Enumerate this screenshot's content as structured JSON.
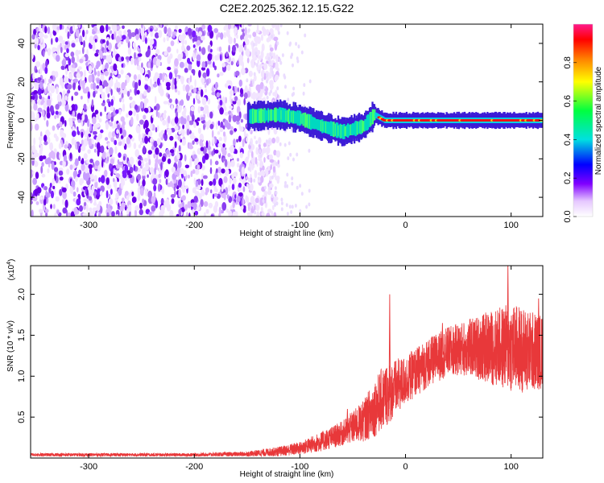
{
  "chart_data": [
    {
      "type": "heatmap",
      "title": "C2E2.2025.362.12.15.G22",
      "xlabel": "Height of straight line (km)",
      "ylabel": "Frequency (Hz)",
      "xlim": [
        -355,
        130
      ],
      "ylim": [
        -50,
        50
      ],
      "x_ticks": [
        -300,
        -200,
        -100,
        0,
        100
      ],
      "y_ticks": [
        -40,
        -20,
        0,
        20,
        40
      ],
      "colorbar": {
        "label": "Normalized spectral amplitude",
        "range": [
          0.0,
          1.0
        ],
        "ticks": [
          0.0,
          0.2,
          0.4,
          0.6,
          0.8
        ],
        "tick_labels": [
          "0.0",
          "0.2",
          "0.4",
          "0.6",
          "0.8"
        ]
      },
      "features": {
        "noise_region_x": [
          -355,
          -140
        ],
        "signal_trace": [
          {
            "x": -150,
            "f": 2
          },
          {
            "x": -120,
            "f": 3
          },
          {
            "x": -100,
            "f": 1
          },
          {
            "x": -80,
            "f": -3
          },
          {
            "x": -60,
            "f": -6
          },
          {
            "x": -40,
            "f": -3
          },
          {
            "x": -30,
            "f": 3
          },
          {
            "x": -20,
            "f": 0
          },
          {
            "x": 0,
            "f": 0
          },
          {
            "x": 50,
            "f": 0
          },
          {
            "x": 100,
            "f": 0
          },
          {
            "x": 130,
            "f": 0
          }
        ]
      }
    },
    {
      "type": "line",
      "title": "",
      "xlabel": "Height of straight line (km)",
      "ylabel": "SNR (10 * v/v)",
      "scale_label": "(x10",
      "scale_exp": "4",
      "xlim": [
        -355,
        130
      ],
      "ylim": [
        0,
        2.35
      ],
      "x_ticks": [
        -300,
        -200,
        -100,
        0,
        100
      ],
      "y_ticks": [
        0.5,
        1.0,
        1.5,
        2.0
      ],
      "y_tick_labels": [
        "0.5",
        "1.0",
        "1.5",
        "2.0"
      ],
      "color": "#e8383a",
      "envelope": [
        {
          "x": -355,
          "mean": 0.04,
          "amp": 0.02
        },
        {
          "x": -200,
          "mean": 0.04,
          "amp": 0.02
        },
        {
          "x": -150,
          "mean": 0.05,
          "amp": 0.03
        },
        {
          "x": -120,
          "mean": 0.08,
          "amp": 0.06
        },
        {
          "x": -100,
          "mean": 0.12,
          "amp": 0.08
        },
        {
          "x": -80,
          "mean": 0.2,
          "amp": 0.12
        },
        {
          "x": -60,
          "mean": 0.3,
          "amp": 0.15
        },
        {
          "x": -40,
          "mean": 0.45,
          "amp": 0.25
        },
        {
          "x": -30,
          "mean": 0.6,
          "amp": 0.35
        },
        {
          "x": -20,
          "mean": 0.75,
          "amp": 0.4
        },
        {
          "x": 0,
          "mean": 0.95,
          "amp": 0.3
        },
        {
          "x": 20,
          "mean": 1.15,
          "amp": 0.3
        },
        {
          "x": 40,
          "mean": 1.3,
          "amp": 0.3
        },
        {
          "x": 60,
          "mean": 1.35,
          "amp": 0.35
        },
        {
          "x": 80,
          "mean": 1.35,
          "amp": 0.45
        },
        {
          "x": 100,
          "mean": 1.35,
          "amp": 0.55
        },
        {
          "x": 120,
          "mean": 1.3,
          "amp": 0.5
        },
        {
          "x": 130,
          "mean": 1.3,
          "amp": 0.45
        }
      ],
      "peaks": [
        {
          "x": -15,
          "y": 2.0
        },
        {
          "x": 97,
          "y": 2.35
        },
        {
          "x": 126,
          "y": 1.95
        },
        {
          "x": -55,
          "y": 0.6
        },
        {
          "x": 35,
          "y": 1.65
        }
      ]
    }
  ]
}
